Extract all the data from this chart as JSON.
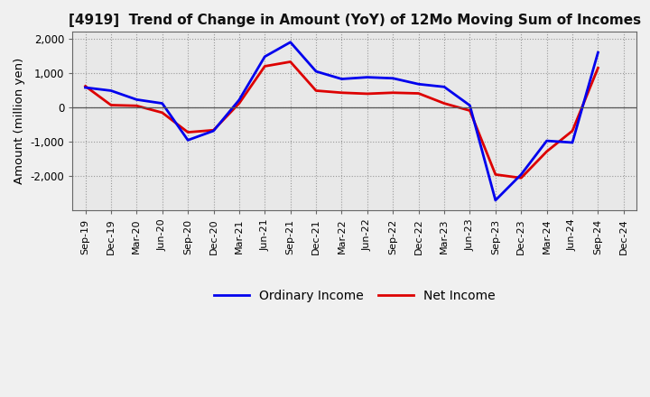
{
  "title": "[4919]  Trend of Change in Amount (YoY) of 12Mo Moving Sum of Incomes",
  "ylabel": "Amount (million yen)",
  "x_labels": [
    "Sep-19",
    "Dec-19",
    "Mar-20",
    "Jun-20",
    "Sep-20",
    "Dec-20",
    "Mar-21",
    "Jun-21",
    "Sep-21",
    "Dec-21",
    "Mar-22",
    "Jun-22",
    "Sep-22",
    "Dec-22",
    "Mar-23",
    "Jun-23",
    "Sep-23",
    "Dec-23",
    "Mar-24",
    "Jun-24",
    "Sep-24",
    "Dec-24"
  ],
  "ordinary_income": [
    580,
    490,
    230,
    120,
    -950,
    -680,
    220,
    1480,
    1900,
    1050,
    830,
    880,
    850,
    680,
    600,
    60,
    -2700,
    -1950,
    -970,
    -1020,
    1600,
    null
  ],
  "net_income": [
    620,
    70,
    50,
    -150,
    -720,
    -660,
    120,
    1200,
    1330,
    490,
    430,
    400,
    430,
    410,
    120,
    -90,
    -1950,
    -2050,
    -1280,
    -680,
    1150,
    null
  ],
  "ordinary_color": "#0000ee",
  "net_color": "#dd0000",
  "ylim": [
    -3000,
    2200
  ],
  "yticks": [
    -2000,
    -1000,
    0,
    1000,
    2000
  ],
  "bg_color": "#f0f0f0",
  "plot_bg_color": "#e8e8e8",
  "grid_color": "#999999",
  "legend_labels": [
    "Ordinary Income",
    "Net Income"
  ]
}
